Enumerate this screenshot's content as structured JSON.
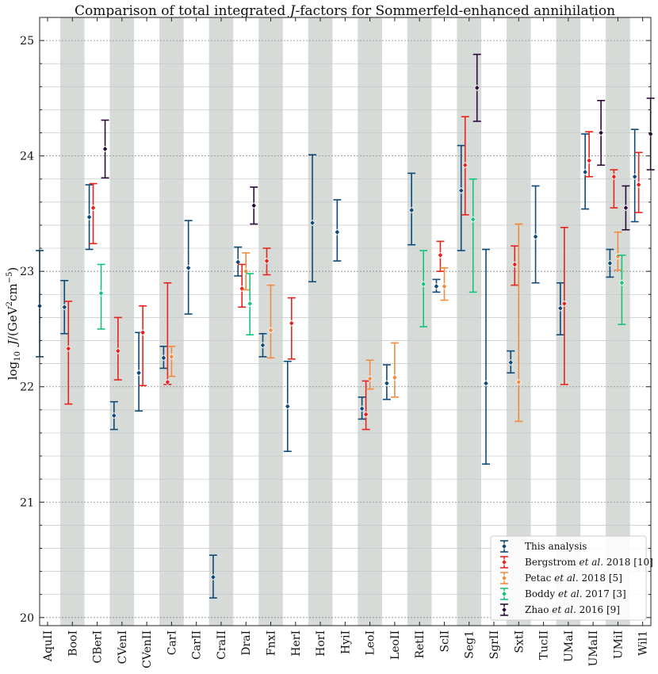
{
  "chart_data": {
    "type": "scatter",
    "title": "Comparison of total integrated J-factors for Sommerfeld-enhanced annihilation",
    "xlabel": "",
    "ylabel": "log10 J/(GeV^2 cm^-5)",
    "ylim": [
      19.93,
      25.2
    ],
    "yticks": [
      20,
      21,
      22,
      23,
      24,
      25
    ],
    "categories": [
      "AquII",
      "BooI",
      "CBerI",
      "CVenI",
      "CVenII",
      "CarI",
      "CarII",
      "CraII",
      "DraI",
      "FnxI",
      "HerI",
      "HorI",
      "HyiI",
      "LeoI",
      "LeoII",
      "RetII",
      "SclI",
      "Seg1",
      "SgrII",
      "SxtI",
      "TucII",
      "UMaI",
      "UMaII",
      "UMiI",
      "Wil1"
    ],
    "shaded_categories": [
      "BooI",
      "CVenI",
      "CarI",
      "CraII",
      "FnxI",
      "HorI",
      "LeoI",
      "RetII",
      "Seg1",
      "SxtI",
      "UMaI",
      "UMiI"
    ],
    "series": [
      {
        "name": "This analysis",
        "color": "#0e4a78",
        "points": [
          {
            "cat": "AquII",
            "y": 22.7,
            "lo": 22.26,
            "hi": 23.18
          },
          {
            "cat": "BooI",
            "y": 22.69,
            "lo": 22.46,
            "hi": 22.92
          },
          {
            "cat": "CBerI",
            "y": 23.47,
            "lo": 23.19,
            "hi": 23.75
          },
          {
            "cat": "CVenI",
            "y": 21.75,
            "lo": 21.63,
            "hi": 21.87
          },
          {
            "cat": "CVenII",
            "y": 22.12,
            "lo": 21.79,
            "hi": 22.47
          },
          {
            "cat": "CarI",
            "y": 22.25,
            "lo": 22.16,
            "hi": 22.35
          },
          {
            "cat": "CarII",
            "y": 23.03,
            "lo": 22.63,
            "hi": 23.44
          },
          {
            "cat": "CraII",
            "y": 20.35,
            "lo": 20.17,
            "hi": 20.54
          },
          {
            "cat": "DraI",
            "y": 23.08,
            "lo": 22.96,
            "hi": 23.21
          },
          {
            "cat": "FnxI",
            "y": 22.36,
            "lo": 22.26,
            "hi": 22.46
          },
          {
            "cat": "HerI",
            "y": 21.83,
            "lo": 21.44,
            "hi": 22.22
          },
          {
            "cat": "HorI",
            "y": 23.42,
            "lo": 22.91,
            "hi": 24.01
          },
          {
            "cat": "HyiI",
            "y": 23.34,
            "lo": 23.09,
            "hi": 23.62
          },
          {
            "cat": "LeoI",
            "y": 21.81,
            "lo": 21.72,
            "hi": 21.91
          },
          {
            "cat": "LeoII",
            "y": 22.03,
            "lo": 21.89,
            "hi": 22.19
          },
          {
            "cat": "RetII",
            "y": 23.53,
            "lo": 23.23,
            "hi": 23.85
          },
          {
            "cat": "SclI",
            "y": 22.87,
            "lo": 22.82,
            "hi": 22.93
          },
          {
            "cat": "Seg1",
            "y": 23.7,
            "lo": 23.18,
            "hi": 24.09
          },
          {
            "cat": "SgrII",
            "y": 22.03,
            "lo": 21.33,
            "hi": 23.19
          },
          {
            "cat": "SxtI",
            "y": 22.21,
            "lo": 22.12,
            "hi": 22.31
          },
          {
            "cat": "TucII",
            "y": 23.3,
            "lo": 22.9,
            "hi": 23.74
          },
          {
            "cat": "UMaI",
            "y": 22.68,
            "lo": 22.45,
            "hi": 22.9
          },
          {
            "cat": "UMaII",
            "y": 23.86,
            "lo": 23.54,
            "hi": 24.19
          },
          {
            "cat": "UMiI",
            "y": 23.07,
            "lo": 22.95,
            "hi": 23.19
          },
          {
            "cat": "Wil1",
            "y": 23.82,
            "lo": 23.43,
            "hi": 24.23
          }
        ]
      },
      {
        "name": "Bergstrom et al. 2018 [10]",
        "color": "#e8231c",
        "points": [
          {
            "cat": "BooI",
            "y": 22.33,
            "lo": 21.85,
            "hi": 22.74
          },
          {
            "cat": "CBerI",
            "y": 23.55,
            "lo": 23.24,
            "hi": 23.76
          },
          {
            "cat": "CVenI",
            "y": 22.31,
            "lo": 22.06,
            "hi": 22.6
          },
          {
            "cat": "CVenII",
            "y": 22.47,
            "lo": 22.01,
            "hi": 22.7
          },
          {
            "cat": "CarI",
            "y": 22.04,
            "lo": 22.02,
            "hi": 22.9
          },
          {
            "cat": "DraI",
            "y": 22.85,
            "lo": 22.69,
            "hi": 23.06
          },
          {
            "cat": "FnxI",
            "y": 23.09,
            "lo": 22.97,
            "hi": 23.2
          },
          {
            "cat": "HerI",
            "y": 22.55,
            "lo": 22.24,
            "hi": 22.77
          },
          {
            "cat": "LeoI",
            "y": 21.76,
            "lo": 21.63,
            "hi": 22.05
          },
          {
            "cat": "SclI",
            "y": 23.14,
            "lo": 23.0,
            "hi": 23.26
          },
          {
            "cat": "Seg1",
            "y": 23.92,
            "lo": 23.49,
            "hi": 24.34
          },
          {
            "cat": "SxtI",
            "y": 23.06,
            "lo": 22.88,
            "hi": 23.22
          },
          {
            "cat": "UMaI",
            "y": 22.72,
            "lo": 22.02,
            "hi": 23.38
          },
          {
            "cat": "UMaII",
            "y": 23.96,
            "lo": 23.82,
            "hi": 24.21
          },
          {
            "cat": "UMiI",
            "y": 23.82,
            "lo": 23.55,
            "hi": 23.88
          },
          {
            "cat": "Wil1",
            "y": 23.75,
            "lo": 23.51,
            "hi": 24.03
          }
        ]
      },
      {
        "name": "Petac et al. 2018 [5]",
        "color": "#f38b3e",
        "points": [
          {
            "cat": "CarI",
            "y": 22.26,
            "lo": 22.09,
            "hi": 22.35
          },
          {
            "cat": "DraI",
            "y": 23.0,
            "lo": 22.84,
            "hi": 23.16
          },
          {
            "cat": "FnxI",
            "y": 22.49,
            "lo": 22.25,
            "hi": 22.88
          },
          {
            "cat": "LeoI",
            "y": 22.07,
            "lo": 21.98,
            "hi": 22.23
          },
          {
            "cat": "LeoII",
            "y": 22.08,
            "lo": 21.91,
            "hi": 22.38
          },
          {
            "cat": "SclI",
            "y": 22.87,
            "lo": 22.75,
            "hi": 23.03
          },
          {
            "cat": "SxtI",
            "y": 22.04,
            "lo": 21.7,
            "hi": 23.41
          },
          {
            "cat": "UMiI",
            "y": 23.13,
            "lo": 23.01,
            "hi": 23.34
          }
        ]
      },
      {
        "name": "Boddy et al. 2017 [3]",
        "color": "#17c27b",
        "points": [
          {
            "cat": "CBerI",
            "y": 22.81,
            "lo": 22.5,
            "hi": 23.06
          },
          {
            "cat": "DraI",
            "y": 22.72,
            "lo": 22.45,
            "hi": 22.98
          },
          {
            "cat": "RetII",
            "y": 22.89,
            "lo": 22.52,
            "hi": 23.18
          },
          {
            "cat": "Seg1",
            "y": 23.45,
            "lo": 22.82,
            "hi": 23.8
          },
          {
            "cat": "UMiI",
            "y": 22.9,
            "lo": 22.54,
            "hi": 23.14
          }
        ]
      },
      {
        "name": "Zhao et al. 2016 [9]",
        "color": "#2e0a3a",
        "points": [
          {
            "cat": "CBerI",
            "y": 24.06,
            "lo": 23.81,
            "hi": 24.31
          },
          {
            "cat": "DraI",
            "y": 23.57,
            "lo": 23.41,
            "hi": 23.73
          },
          {
            "cat": "Seg1",
            "y": 24.59,
            "lo": 24.3,
            "hi": 24.88
          },
          {
            "cat": "UMaII",
            "y": 24.2,
            "lo": 23.92,
            "hi": 24.48
          },
          {
            "cat": "UMiI",
            "y": 23.55,
            "lo": 23.36,
            "hi": 23.74
          },
          {
            "cat": "Wil1",
            "y": 24.19,
            "lo": 23.88,
            "hi": 24.5
          }
        ]
      }
    ],
    "legend_position": "bottom-right",
    "legend": [
      {
        "pre": "This analysis",
        "italic": "",
        "post": ""
      },
      {
        "pre": "Bergstrom ",
        "italic": "et al.",
        "post": " 2018 [10]"
      },
      {
        "pre": "Petac ",
        "italic": "et al.",
        "post": " 2018 [5]"
      },
      {
        "pre": "Boddy ",
        "italic": "et al.",
        "post": " 2017 [3]"
      },
      {
        "pre": "Zhao ",
        "italic": "et al.",
        "post": " 2016 [9]"
      }
    ],
    "title_parts": {
      "pre": "Comparison of total integrated ",
      "italic": "J",
      "post": "-factors for Sommerfeld-enhanced annihilation"
    },
    "ylabel_parts": {
      "log": "log",
      "sub": "10",
      "j": "J",
      "unit_pre": "/(GeV",
      "unit_sup1": "2",
      "unit_mid": "cm",
      "unit_sup2": "−5",
      "unit_post": ")"
    }
  }
}
